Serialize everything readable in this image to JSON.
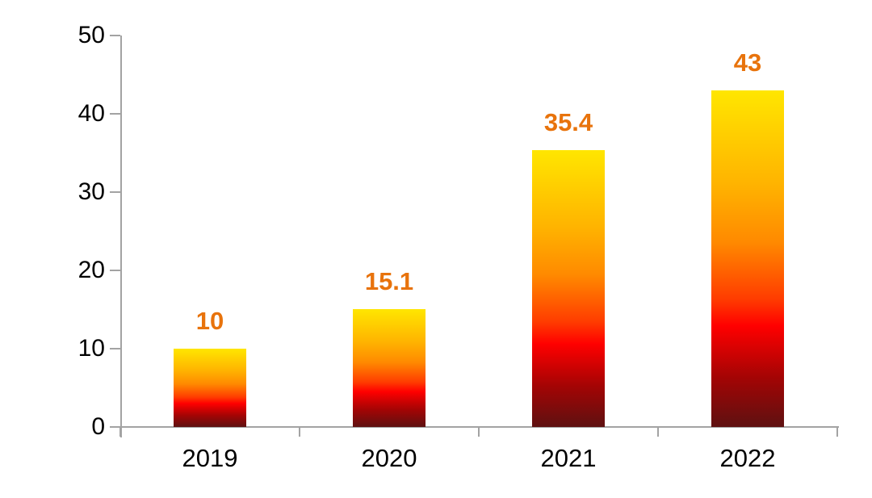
{
  "chart_data": {
    "type": "bar",
    "title": "",
    "xlabel": "",
    "ylabel": "",
    "categories": [
      "2019",
      "2020",
      "2021",
      "2022"
    ],
    "values": [
      10,
      15.1,
      35.4,
      43
    ],
    "data_labels": [
      "10",
      "15.1",
      "35.4",
      "43"
    ],
    "y_ticks": [
      0,
      10,
      20,
      30,
      40,
      50
    ],
    "ylim": [
      0,
      50
    ],
    "grid": false,
    "legend": false,
    "layout_hints": {
      "bar_gradient_direction": "top-to-bottom",
      "tick_marks": "outside",
      "data_label_position": "outside-end"
    },
    "colors": {
      "bar_gradient_stops": [
        "#ffe600",
        "#ffb300",
        "#ff8a00",
        "#ff3c00",
        "#ff0000",
        "#a50404",
        "#5e1111"
      ],
      "bar_gradient_positions": [
        0,
        0.28,
        0.45,
        0.62,
        0.7,
        0.85,
        1
      ],
      "data_label": "#e8730c",
      "axis_line": "#a3a3a3",
      "tick_label": "#000000",
      "background": "#ffffff"
    }
  }
}
